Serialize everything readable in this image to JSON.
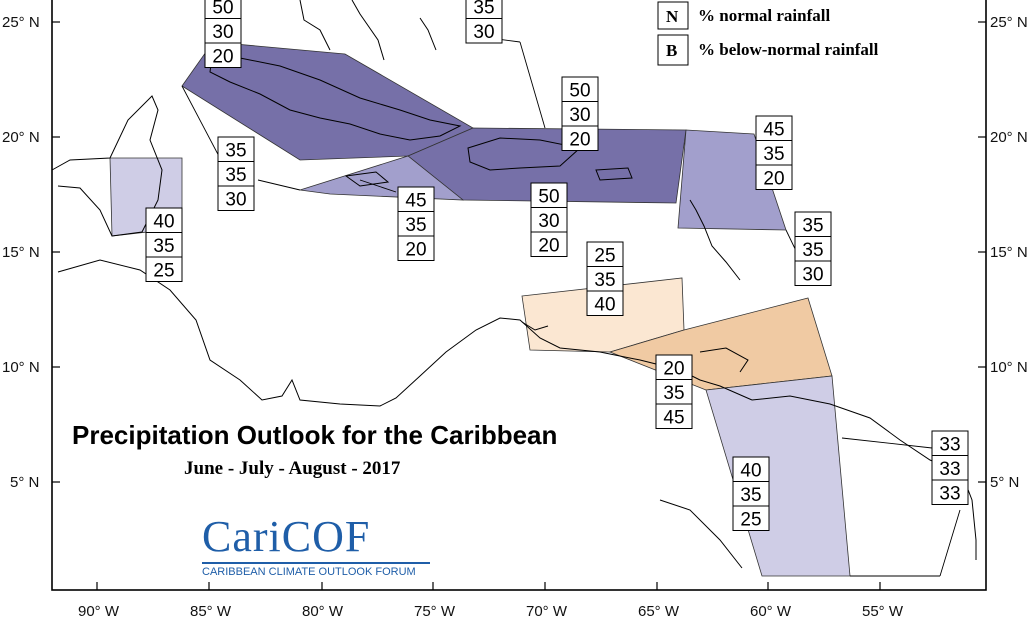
{
  "title": "Precipitation Outlook for the Caribbean",
  "subtitle": "June - July - August - 2017",
  "logo": {
    "name": "CariCOF",
    "tagline": "CARIBBEAN CLIMATE OUTLOOK FORUM"
  },
  "legend": [
    {
      "key": "N",
      "text": "% normal rainfall"
    },
    {
      "key": "B",
      "text": "% below-normal rainfall"
    }
  ],
  "lat_labels": [
    "25° N",
    "20° N",
    "15° N",
    "10° N",
    "5° N"
  ],
  "lon_labels": [
    "90° W",
    "85° W",
    "80° W",
    "75° W",
    "70° W",
    "65° W",
    "60° W",
    "55° W"
  ],
  "colors": {
    "dark_purple": "#7670a8",
    "mid_purple": "#a29fcc",
    "light_purple": "#cfcde6",
    "light_peach": "#fbe7d2",
    "peach": "#f0caa3",
    "white": "#ffffff"
  },
  "probability_boxes": [
    {
      "region": "cuba-north",
      "above": "",
      "normal": "",
      "below": "",
      "values": [
        "50",
        "30",
        "20"
      ]
    },
    {
      "region": "bahamas",
      "values": [
        "35",
        "30"
      ]
    },
    {
      "region": "hispaniola-puerto-rico",
      "values": [
        "50",
        "30",
        "20"
      ]
    },
    {
      "region": "windward-north",
      "values": [
        "45",
        "35",
        "20"
      ]
    },
    {
      "region": "cayman-west",
      "values": [
        "35",
        "35",
        "30"
      ]
    },
    {
      "region": "jamaica",
      "values": [
        "45",
        "35",
        "20"
      ]
    },
    {
      "region": "hispaniola-south",
      "values": [
        "50",
        "30",
        "20"
      ]
    },
    {
      "region": "belize",
      "values": [
        "40",
        "35",
        "25"
      ]
    },
    {
      "region": "leeward-islands",
      "values": [
        "35",
        "35",
        "30"
      ]
    },
    {
      "region": "abc-islands",
      "values": [
        "25",
        "35",
        "40"
      ]
    },
    {
      "region": "trinidad",
      "values": [
        "20",
        "35",
        "45"
      ]
    },
    {
      "region": "guyana",
      "values": [
        "40",
        "35",
        "25"
      ]
    },
    {
      "region": "french-guiana",
      "values": [
        "33",
        "33",
        "33"
      ]
    }
  ]
}
